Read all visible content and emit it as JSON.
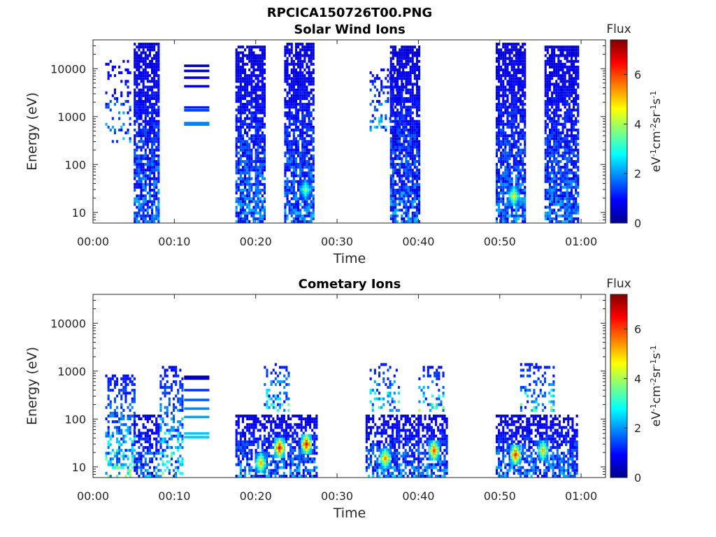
{
  "figure_title": "RPCICA150726T00.PNG",
  "chart_data": [
    {
      "type": "heatmap",
      "title": "Solar Wind Ions",
      "xlabel": "Time",
      "ylabel": "Energy (eV)",
      "x_ticks": [
        "00:00",
        "00:10",
        "00:20",
        "00:30",
        "00:40",
        "00:50",
        "01:00"
      ],
      "x_tick_minutes": [
        0,
        10,
        20,
        30,
        40,
        50,
        60
      ],
      "xlim_minutes": [
        0,
        63
      ],
      "y_scale": "log",
      "ylim": [
        6,
        40000
      ],
      "y_ticks": [
        10,
        100,
        1000,
        10000
      ],
      "y_tick_labels": [
        "10",
        "100",
        "1000",
        "10000"
      ],
      "colorbar": {
        "title": "Flux",
        "label": "eV-1cm-2sr-1s-1",
        "range": [
          0,
          7.4
        ],
        "ticks": [
          0,
          2,
          4,
          6
        ],
        "colormap": "jet"
      },
      "bursts": [
        {
          "start_min": 1.5,
          "end_min": 4.5,
          "e_min": 300,
          "e_max": 15000,
          "flux": 1.4,
          "density": 0.25
        },
        {
          "start_min": 5.0,
          "end_min": 8.0,
          "e_min": 6,
          "e_max": 35000,
          "flux": 1.2,
          "density": 0.8
        },
        {
          "start_min": 17.5,
          "end_min": 21.0,
          "e_min": 6,
          "e_max": 30000,
          "flux": 1.2,
          "density": 0.8
        },
        {
          "start_min": 23.5,
          "end_min": 27.0,
          "e_min": 6,
          "e_max": 35000,
          "flux": 1.2,
          "density": 0.8
        },
        {
          "start_min": 34.0,
          "end_min": 38.0,
          "e_min": 500,
          "e_max": 10000,
          "flux": 1.6,
          "density": 0.3
        },
        {
          "start_min": 36.5,
          "end_min": 40.0,
          "e_min": 6,
          "e_max": 30000,
          "flux": 1.2,
          "density": 0.8
        },
        {
          "start_min": 49.5,
          "end_min": 53.0,
          "e_min": 6,
          "e_max": 35000,
          "flux": 1.2,
          "density": 0.8
        },
        {
          "start_min": 55.5,
          "end_min": 59.5,
          "e_min": 6,
          "e_max": 30000,
          "flux": 1.2,
          "density": 0.8
        }
      ],
      "lines": [
        {
          "start_min": 11.2,
          "end_min": 14.3,
          "energy": 11500,
          "flux": 0.4
        },
        {
          "start_min": 11.2,
          "end_min": 14.3,
          "energy": 9000,
          "flux": 0.5
        },
        {
          "start_min": 11.2,
          "end_min": 14.3,
          "energy": 6500,
          "flux": 0.6
        },
        {
          "start_min": 11.2,
          "end_min": 14.3,
          "energy": 4300,
          "flux": 0.6
        },
        {
          "start_min": 11.2,
          "end_min": 14.3,
          "energy": 1550,
          "flux": 1.1
        },
        {
          "start_min": 11.2,
          "end_min": 14.3,
          "energy": 1350,
          "flux": 1.4
        },
        {
          "start_min": 11.2,
          "end_min": 14.3,
          "energy": 730,
          "flux": 1.8
        },
        {
          "start_min": 11.2,
          "end_min": 14.3,
          "energy": 680,
          "flux": 1.9
        }
      ],
      "hotspots": [
        {
          "time_min": 26.0,
          "energy": 30,
          "flux": 3.8
        },
        {
          "time_min": 51.6,
          "energy": 22,
          "flux": 4.6
        }
      ]
    },
    {
      "type": "heatmap",
      "title": "Cometary Ions",
      "xlabel": "Time",
      "ylabel": "Energy (eV)",
      "x_ticks": [
        "00:00",
        "00:10",
        "00:20",
        "00:30",
        "00:40",
        "00:50",
        "01:00"
      ],
      "x_tick_minutes": [
        0,
        10,
        20,
        30,
        40,
        50,
        60
      ],
      "xlim_minutes": [
        0,
        63
      ],
      "y_scale": "log",
      "ylim": [
        6,
        40000
      ],
      "y_ticks": [
        10,
        100,
        1000,
        10000
      ],
      "y_tick_labels": [
        "10",
        "100",
        "1000",
        "10000"
      ],
      "colorbar": {
        "title": "Flux",
        "label": "eV-1cm-2sr-1s-1",
        "range": [
          0,
          7.4
        ],
        "ticks": [
          0,
          2,
          4,
          6
        ],
        "colormap": "jet"
      },
      "bursts": [
        {
          "start_min": 1.5,
          "end_min": 5.0,
          "e_min": 6,
          "e_max": 800,
          "flux": 2.0,
          "density": 0.45
        },
        {
          "start_min": 5.0,
          "end_min": 8.0,
          "e_min": 6,
          "e_max": 120,
          "flux": 1.3,
          "density": 0.6
        },
        {
          "start_min": 8.2,
          "end_min": 11.0,
          "e_min": 6,
          "e_max": 1200,
          "flux": 2.0,
          "density": 0.45
        },
        {
          "start_min": 17.5,
          "end_min": 27.5,
          "e_min": 6,
          "e_max": 120,
          "flux": 1.3,
          "density": 0.65
        },
        {
          "start_min": 21.0,
          "end_min": 24.0,
          "e_min": 150,
          "e_max": 1400,
          "flux": 2.0,
          "density": 0.3
        },
        {
          "start_min": 33.5,
          "end_min": 43.5,
          "e_min": 6,
          "e_max": 120,
          "flux": 1.3,
          "density": 0.65
        },
        {
          "start_min": 34.0,
          "end_min": 37.5,
          "e_min": 150,
          "e_max": 1500,
          "flux": 2.0,
          "density": 0.3
        },
        {
          "start_min": 40.0,
          "end_min": 43.0,
          "e_min": 150,
          "e_max": 1200,
          "flux": 2.0,
          "density": 0.3
        },
        {
          "start_min": 49.5,
          "end_min": 59.5,
          "e_min": 6,
          "e_max": 120,
          "flux": 1.3,
          "density": 0.65
        },
        {
          "start_min": 52.5,
          "end_min": 56.5,
          "e_min": 150,
          "e_max": 1500,
          "flux": 2.0,
          "density": 0.3
        }
      ],
      "lines": [
        {
          "start_min": 11.2,
          "end_min": 14.3,
          "energy": 760,
          "flux": 0.4
        },
        {
          "start_min": 11.2,
          "end_min": 14.3,
          "energy": 700,
          "flux": 0.5
        },
        {
          "start_min": 11.2,
          "end_min": 14.3,
          "energy": 400,
          "flux": 1.3
        },
        {
          "start_min": 11.2,
          "end_min": 14.3,
          "energy": 250,
          "flux": 1.6
        },
        {
          "start_min": 11.2,
          "end_min": 14.3,
          "energy": 165,
          "flux": 1.9
        },
        {
          "start_min": 11.2,
          "end_min": 14.3,
          "energy": 110,
          "flux": 2.1
        },
        {
          "start_min": 11.2,
          "end_min": 14.3,
          "energy": 50,
          "flux": 2.4
        },
        {
          "start_min": 11.2,
          "end_min": 14.3,
          "energy": 42,
          "flux": 2.4
        }
      ],
      "hotspots": [
        {
          "time_min": 22.8,
          "energy": 25,
          "flux": 6.6
        },
        {
          "time_min": 26.1,
          "energy": 30,
          "flux": 6.6
        },
        {
          "time_min": 35.8,
          "energy": 15,
          "flux": 5.6
        },
        {
          "time_min": 41.8,
          "energy": 22,
          "flux": 6.0
        },
        {
          "time_min": 51.8,
          "energy": 18,
          "flux": 6.3
        },
        {
          "time_min": 55.2,
          "energy": 22,
          "flux": 5.0
        },
        {
          "time_min": 20.5,
          "energy": 12,
          "flux": 5.2
        }
      ]
    }
  ]
}
